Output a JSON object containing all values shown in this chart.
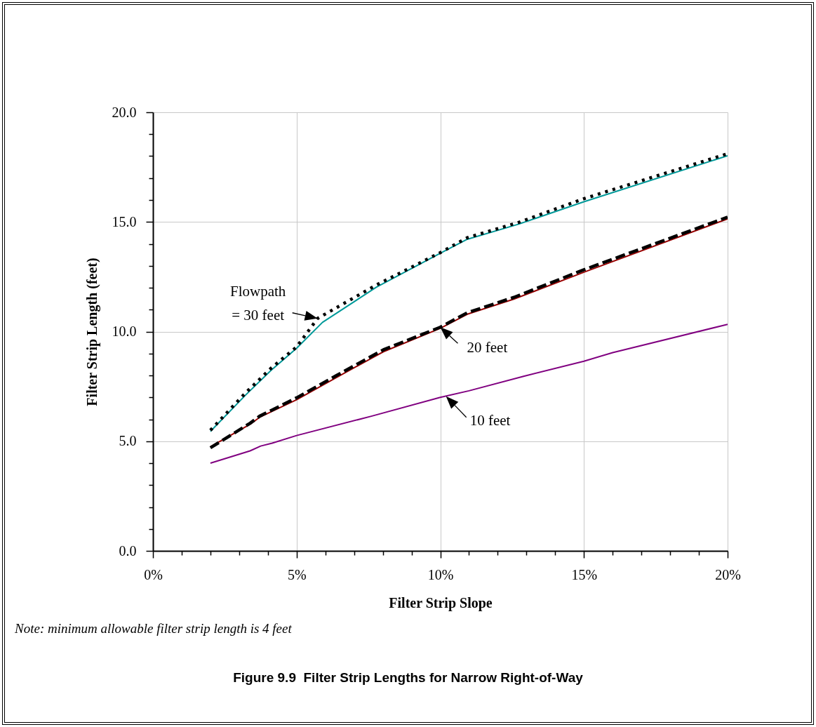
{
  "chart_data": {
    "type": "line",
    "title": "Figure 9.9  Filter Strip Lengths for Narrow Right-of-Way",
    "xlabel": "Filter Strip Slope",
    "ylabel": "Filter Strip Length (feet)",
    "xlim": [
      0,
      20
    ],
    "ylim": [
      0,
      20
    ],
    "xticks": [
      {
        "value": 0,
        "label": "0%"
      },
      {
        "value": 1,
        "label": null
      },
      {
        "value": 2,
        "label": null
      },
      {
        "value": 3,
        "label": null
      },
      {
        "value": 4,
        "label": null
      },
      {
        "value": 5,
        "label": "5%"
      },
      {
        "value": 6,
        "label": null
      },
      {
        "value": 7,
        "label": null
      },
      {
        "value": 8,
        "label": null
      },
      {
        "value": 9,
        "label": null
      },
      {
        "value": 10,
        "label": "10%"
      },
      {
        "value": 11,
        "label": null
      },
      {
        "value": 12,
        "label": null
      },
      {
        "value": 13,
        "label": null
      },
      {
        "value": 14,
        "label": null
      },
      {
        "value": 15,
        "label": "15%"
      },
      {
        "value": 16,
        "label": null
      },
      {
        "value": 17,
        "label": null
      },
      {
        "value": 18,
        "label": null
      },
      {
        "value": 19,
        "label": null
      },
      {
        "value": 20,
        "label": "20%"
      }
    ],
    "yticks": [
      {
        "value": 0,
        "label": "0.0"
      },
      {
        "value": 1,
        "label": null
      },
      {
        "value": 2,
        "label": null
      },
      {
        "value": 3,
        "label": null
      },
      {
        "value": 4,
        "label": null
      },
      {
        "value": 5,
        "label": "5.0"
      },
      {
        "value": 6,
        "label": null
      },
      {
        "value": 7,
        "label": null
      },
      {
        "value": 8,
        "label": null
      },
      {
        "value": 9,
        "label": null
      },
      {
        "value": 10,
        "label": "10.0"
      },
      {
        "value": 11,
        "label": null
      },
      {
        "value": 12,
        "label": null
      },
      {
        "value": 13,
        "label": null
      },
      {
        "value": 14,
        "label": null
      },
      {
        "value": 15,
        "label": "15.0"
      },
      {
        "value": 16,
        "label": null
      },
      {
        "value": 17,
        "label": null
      },
      {
        "value": 18,
        "label": null
      },
      {
        "value": 19,
        "label": null
      },
      {
        "value": 20,
        "label": "20.0"
      }
    ],
    "grid": true,
    "series": [
      {
        "color": "#009999",
        "line_style": "solid",
        "x": [
          2,
          3.22,
          4.11,
          5,
          5.9,
          7.77,
          10,
          10.94,
          12.73,
          15,
          20
        ],
        "values": [
          5.45,
          7.1,
          8.23,
          9.24,
          10.42,
          12.02,
          13.57,
          14.21,
          14.9,
          15.92,
          18.02
        ]
      },
      {
        "color": "#000000",
        "line_style": "dotted",
        "x": [
          2,
          3.22,
          4.11,
          5,
          5.73,
          7.77,
          10,
          10.94,
          12.73,
          15,
          20
        ],
        "values": [
          5.5,
          7.2,
          8.33,
          9.3,
          10.6,
          12.12,
          13.6,
          14.28,
          14.98,
          16.06,
          18.11
        ]
      },
      {
        "color": "#990000",
        "line_style": "solid",
        "x": [
          2,
          3.38,
          3.71,
          5,
          6.39,
          8.02,
          10,
          10.94,
          12.56,
          15,
          20
        ],
        "values": [
          4.75,
          5.77,
          6.09,
          6.89,
          7.91,
          9.08,
          10.15,
          10.79,
          11.48,
          12.71,
          15.14
        ]
      },
      {
        "color": "#000000",
        "line_style": "dashed",
        "x": [
          2,
          3.38,
          3.71,
          5,
          6.39,
          8.02,
          10,
          10.94,
          12.56,
          15,
          20
        ],
        "values": [
          4.7,
          5.82,
          6.14,
          6.98,
          8.0,
          9.17,
          10.2,
          10.86,
          11.56,
          12.82,
          15.22
        ]
      },
      {
        "color": "#800080",
        "line_style": "solid",
        "x": [
          2,
          3.38,
          3.75,
          4.15,
          5,
          7.6,
          10,
          11,
          12.9,
          15,
          16,
          20
        ],
        "values": [
          4.0,
          4.56,
          4.78,
          4.91,
          5.26,
          6.14,
          7.0,
          7.3,
          7.96,
          8.65,
          9.04,
          10.33
        ]
      }
    ],
    "annotations": [
      {
        "text": "Flowpath\n= 30 feet",
        "x": 5.73,
        "y": 10.6
      },
      {
        "text": "20 feet",
        "x": 10,
        "y": 10.2
      },
      {
        "text": "10 feet",
        "x": 10.2,
        "y": 7.05
      },
      "Note: minimum allowable filter strip length is 4 feet"
    ]
  }
}
